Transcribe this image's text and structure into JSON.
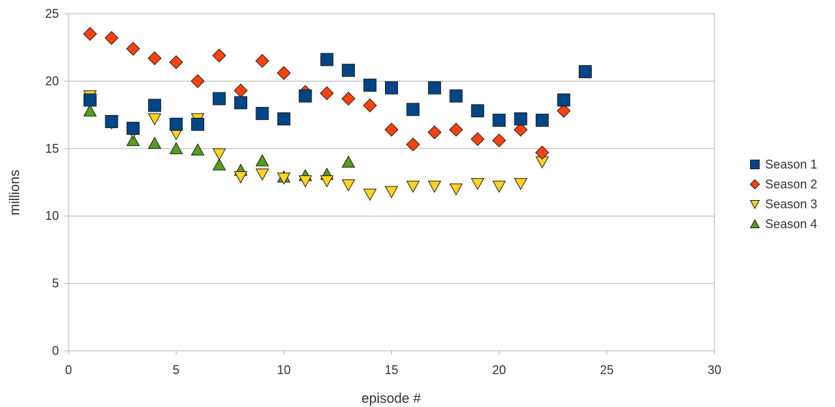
{
  "chart_data": {
    "type": "scatter",
    "title": "",
    "xlabel": "episode #",
    "ylabel": "millions",
    "xlim": [
      0,
      30
    ],
    "ylim": [
      0,
      25
    ],
    "xticks": [
      0,
      5,
      10,
      15,
      20,
      25,
      30
    ],
    "yticks": [
      0,
      5,
      10,
      15,
      20,
      25
    ],
    "grid": "horizontal",
    "legend_position": "right",
    "series": [
      {
        "name": "Season 1",
        "marker": "square",
        "color": "#004586",
        "points": [
          [
            1,
            18.6
          ],
          [
            2,
            17.0
          ],
          [
            3,
            16.5
          ],
          [
            4,
            18.2
          ],
          [
            5,
            16.8
          ],
          [
            6,
            16.8
          ],
          [
            7,
            18.7
          ],
          [
            8,
            18.4
          ],
          [
            9,
            17.6
          ],
          [
            10,
            17.2
          ],
          [
            11,
            18.9
          ],
          [
            12,
            21.6
          ],
          [
            13,
            20.8
          ],
          [
            14,
            19.7
          ],
          [
            15,
            19.5
          ],
          [
            16,
            17.9
          ],
          [
            17,
            19.5
          ],
          [
            18,
            18.9
          ],
          [
            19,
            17.8
          ],
          [
            20,
            17.1
          ],
          [
            21,
            17.2
          ],
          [
            22,
            17.1
          ],
          [
            23,
            18.6
          ],
          [
            24,
            20.7
          ]
        ]
      },
      {
        "name": "Season 2",
        "marker": "diamond",
        "color": "#ff420e",
        "points": [
          [
            1,
            23.5
          ],
          [
            2,
            23.2
          ],
          [
            3,
            22.4
          ],
          [
            4,
            21.7
          ],
          [
            5,
            21.4
          ],
          [
            6,
            20.0
          ],
          [
            7,
            21.9
          ],
          [
            8,
            19.3
          ],
          [
            9,
            21.5
          ],
          [
            10,
            20.6
          ],
          [
            11,
            19.2
          ],
          [
            12,
            19.1
          ],
          [
            13,
            18.7
          ],
          [
            14,
            18.2
          ],
          [
            15,
            16.4
          ],
          [
            16,
            15.3
          ],
          [
            17,
            16.2
          ],
          [
            18,
            16.4
          ],
          [
            19,
            15.7
          ],
          [
            20,
            15.6
          ],
          [
            21,
            16.4
          ],
          [
            22,
            14.7
          ],
          [
            23,
            17.8
          ]
        ]
      },
      {
        "name": "Season 3",
        "marker": "triangle-down",
        "color": "#ffd320",
        "points": [
          [
            1,
            18.9
          ],
          [
            2,
            16.9
          ],
          [
            3,
            16.2
          ],
          [
            4,
            17.2
          ],
          [
            5,
            16.1
          ],
          [
            6,
            17.2
          ],
          [
            7,
            14.6
          ],
          [
            8,
            12.9
          ],
          [
            9,
            13.1
          ],
          [
            10,
            12.8
          ],
          [
            11,
            12.6
          ],
          [
            12,
            12.6
          ],
          [
            13,
            12.3
          ],
          [
            14,
            11.6
          ],
          [
            15,
            11.8
          ],
          [
            16,
            12.2
          ],
          [
            17,
            12.2
          ],
          [
            18,
            12.0
          ],
          [
            19,
            12.4
          ],
          [
            20,
            12.2
          ],
          [
            21,
            12.4
          ],
          [
            22,
            14.0
          ]
        ]
      },
      {
        "name": "Season 4",
        "marker": "triangle-up",
        "color": "#579d1c",
        "points": [
          [
            1,
            17.8
          ],
          [
            3,
            15.6
          ],
          [
            4,
            15.4
          ],
          [
            5,
            15.0
          ],
          [
            6,
            14.9
          ],
          [
            7,
            13.8
          ],
          [
            8,
            13.4
          ],
          [
            9,
            14.1
          ],
          [
            10,
            12.9
          ],
          [
            11,
            13.0
          ],
          [
            12,
            13.1
          ],
          [
            13,
            14.0
          ]
        ]
      }
    ]
  }
}
